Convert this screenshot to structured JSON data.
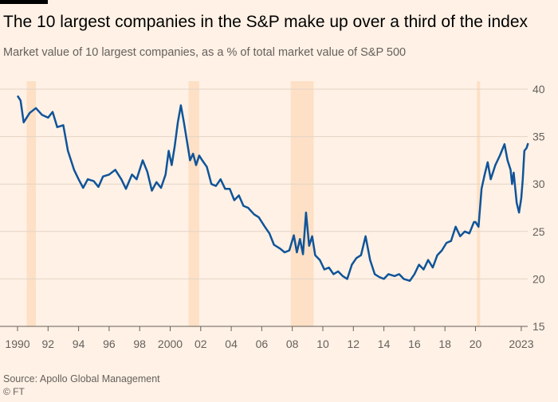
{
  "chart_data": {
    "type": "line",
    "title": "The 10 largest companies in the S&P make up over a third of the index",
    "subtitle": "Market value of 10 largest companies, as a % of total market value of S&P 500",
    "source": "Source: Apollo Global Management",
    "credit": "© FT",
    "color": "#0f5499",
    "shade_color": "#fde0c5",
    "grid": true,
    "xlim": [
      1990,
      2023.5
    ],
    "ylim": [
      15,
      40
    ],
    "yticks": [
      15,
      20,
      25,
      30,
      35,
      40
    ],
    "xticks": [
      {
        "value": 1990,
        "label": "1990"
      },
      {
        "value": 1992,
        "label": "92"
      },
      {
        "value": 1994,
        "label": "94"
      },
      {
        "value": 1996,
        "label": "96"
      },
      {
        "value": 1998,
        "label": "98"
      },
      {
        "value": 2000,
        "label": "2000"
      },
      {
        "value": 2002,
        "label": "02"
      },
      {
        "value": 2004,
        "label": "04"
      },
      {
        "value": 2006,
        "label": "06"
      },
      {
        "value": 2008,
        "label": "08"
      },
      {
        "value": 2010,
        "label": "10"
      },
      {
        "value": 2012,
        "label": "12"
      },
      {
        "value": 2014,
        "label": "14"
      },
      {
        "value": 2016,
        "label": "16"
      },
      {
        "value": 2018,
        "label": "18"
      },
      {
        "value": 2020,
        "label": "20"
      },
      {
        "value": 2023,
        "label": "2023"
      }
    ],
    "shaded_periods": [
      [
        1990.6,
        1991.2
      ],
      [
        2001.2,
        2001.9
      ],
      [
        2007.9,
        2009.4
      ],
      [
        2020.1,
        2020.3
      ]
    ],
    "x": [
      1990.0,
      1990.2,
      1990.4,
      1990.8,
      1991.2,
      1991.6,
      1992.0,
      1992.3,
      1992.6,
      1993.0,
      1993.3,
      1993.7,
      1994.0,
      1994.3,
      1994.6,
      1995.0,
      1995.3,
      1995.6,
      1996.0,
      1996.4,
      1996.8,
      1997.1,
      1997.5,
      1997.8,
      1998.2,
      1998.5,
      1998.8,
      1999.1,
      1999.4,
      1999.7,
      1999.9,
      2000.1,
      2000.3,
      2000.5,
      2000.7,
      2000.9,
      2001.1,
      2001.3,
      2001.5,
      2001.7,
      2001.9,
      2002.1,
      2002.4,
      2002.7,
      2003.0,
      2003.3,
      2003.6,
      2003.9,
      2004.2,
      2004.5,
      2004.8,
      2005.1,
      2005.5,
      2005.8,
      2006.2,
      2006.5,
      2006.8,
      2007.2,
      2007.5,
      2007.8,
      2008.1,
      2008.3,
      2008.5,
      2008.7,
      2008.9,
      2009.1,
      2009.3,
      2009.5,
      2009.8,
      2010.1,
      2010.4,
      2010.7,
      2011.0,
      2011.3,
      2011.6,
      2011.9,
      2012.2,
      2012.5,
      2012.8,
      2013.1,
      2013.4,
      2013.7,
      2014.0,
      2014.3,
      2014.7,
      2015.0,
      2015.3,
      2015.7,
      2016.0,
      2016.3,
      2016.6,
      2016.9,
      2017.2,
      2017.5,
      2017.8,
      2018.1,
      2018.4,
      2018.7,
      2019.0,
      2019.3,
      2019.6,
      2019.9,
      2020.0,
      2020.2,
      2020.4,
      2020.6,
      2020.8,
      2021.0,
      2021.3,
      2021.6,
      2021.9,
      2022.1,
      2022.3,
      2022.4,
      2022.5,
      2022.7,
      2022.85,
      2023.0,
      2023.1,
      2023.2,
      2023.35,
      2023.45
    ],
    "values": [
      39.3,
      38.8,
      36.5,
      37.5,
      38.0,
      37.3,
      37.0,
      37.6,
      36.0,
      36.2,
      33.5,
      31.5,
      30.5,
      29.6,
      30.5,
      30.3,
      29.7,
      30.8,
      31.0,
      31.5,
      30.5,
      29.5,
      31.0,
      30.5,
      32.5,
      31.3,
      29.3,
      30.2,
      29.6,
      31.0,
      33.5,
      32.0,
      34.0,
      36.5,
      38.3,
      36.5,
      34.5,
      32.5,
      33.2,
      32.0,
      33.0,
      32.5,
      31.8,
      30.0,
      29.8,
      30.5,
      29.5,
      29.5,
      28.3,
      28.8,
      27.7,
      27.5,
      26.8,
      26.5,
      25.5,
      24.8,
      23.6,
      23.2,
      22.8,
      23.0,
      24.6,
      22.8,
      24.2,
      22.6,
      27.0,
      23.5,
      24.5,
      22.5,
      22.0,
      21.0,
      21.2,
      20.5,
      20.8,
      20.3,
      20.0,
      21.5,
      22.2,
      22.5,
      24.5,
      22.0,
      20.5,
      20.2,
      20.0,
      20.5,
      20.3,
      20.5,
      20.0,
      19.8,
      20.5,
      21.5,
      21.0,
      22.0,
      21.2,
      22.5,
      23.0,
      23.8,
      24.0,
      25.5,
      24.5,
      25.0,
      24.8,
      26.0,
      26.0,
      25.5,
      29.5,
      31.0,
      32.3,
      30.5,
      32.0,
      33.0,
      34.2,
      32.5,
      31.5,
      30.0,
      31.2,
      28.0,
      27.0,
      28.5,
      30.5,
      33.5,
      33.8,
      34.3
    ]
  }
}
